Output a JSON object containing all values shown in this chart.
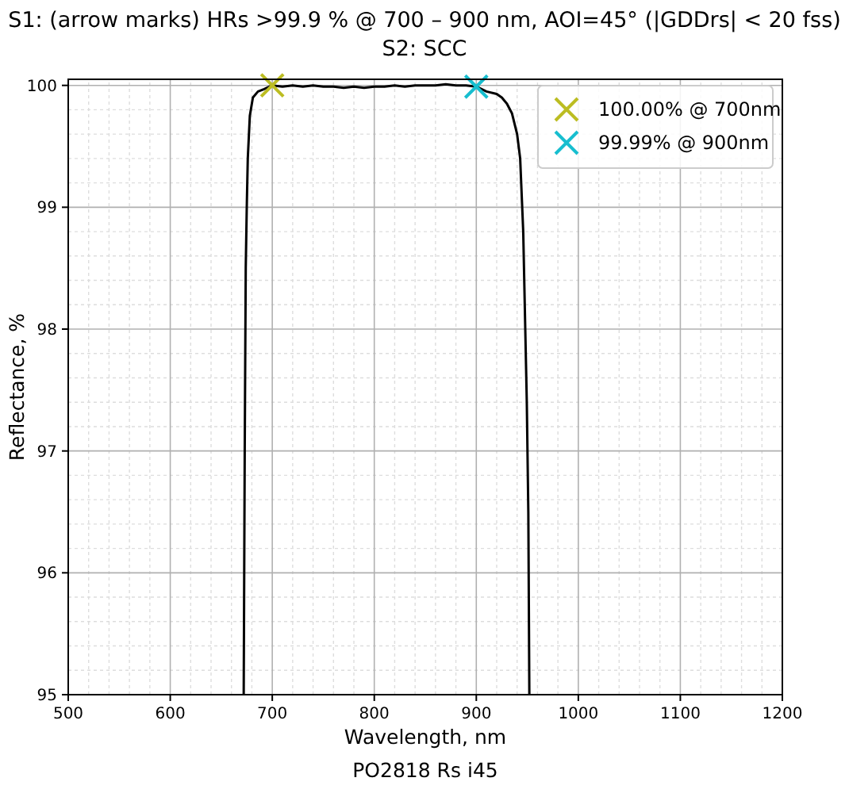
{
  "chart_data": {
    "type": "line",
    "title": "S1: (arrow marks) HRs >99.9 % @ 700 – 900 nm, AOI=45° (|GDDrs| < 20 fss)\nS2: SCC",
    "xlabel": "Wavelength, nm",
    "ylabel": "Reflectance, %",
    "annotations": [
      "PO2818 Rs i45"
    ],
    "xlim": [
      500,
      1200
    ],
    "xticks": [
      500,
      600,
      700,
      800,
      900,
      1000,
      1100,
      1200
    ],
    "ylim": [
      95,
      100.05
    ],
    "yticks": [
      95,
      96,
      97,
      98,
      99,
      100
    ],
    "grid": true,
    "legend": "top right",
    "series": [
      {
        "color": "#000000",
        "x": [
          672,
          673,
          674,
          675,
          676,
          678,
          681,
          686,
          692,
          700,
          710,
          720,
          730,
          740,
          750,
          760,
          770,
          780,
          790,
          800,
          810,
          820,
          830,
          840,
          850,
          860,
          870,
          880,
          890,
          900,
          910,
          920,
          925,
          930,
          935,
          940,
          943,
          946,
          948,
          949.5,
          951,
          952
        ],
        "values": [
          95,
          97,
          98.5,
          99,
          99.4,
          99.75,
          99.9,
          99.95,
          99.97,
          100.0,
          99.99,
          100.0,
          99.99,
          100.0,
          99.99,
          99.99,
          99.98,
          99.99,
          99.98,
          99.99,
          99.99,
          100.0,
          99.99,
          100.0,
          100.0,
          100.0,
          100.01,
          100.0,
          100.0,
          99.99,
          99.95,
          99.93,
          99.9,
          99.85,
          99.77,
          99.6,
          99.4,
          98.8,
          98.0,
          97.4,
          96.5,
          95
        ]
      },
      {
        "type": "scatter",
        "name": "100.00% @ 700nm",
        "color": "#bcbd22",
        "marker": "cross",
        "x": [
          700
        ],
        "values": [
          100.0
        ]
      },
      {
        "type": "scatter",
        "name": "99.99% @ 900nm",
        "color": "#17becf",
        "marker": "cross",
        "x": [
          900
        ],
        "values": [
          99.99
        ]
      }
    ]
  }
}
